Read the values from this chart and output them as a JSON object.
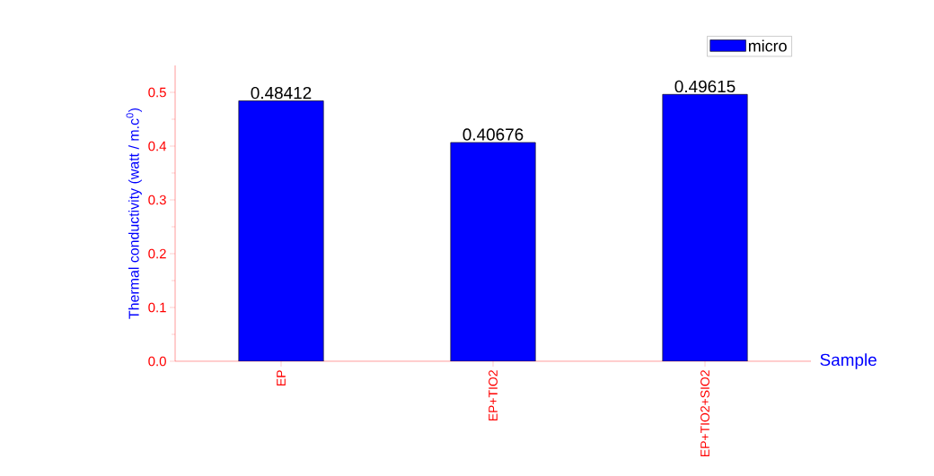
{
  "chart_data": {
    "type": "bar",
    "xlabel": "Sample",
    "ylabel": "Thermal conductivity (watt / m.c$^{0}$)",
    "categories": [
      "EP",
      "EP+TIO2",
      "EP+TIO2+SIO2"
    ],
    "series": [
      {
        "name": "micro",
        "color": "#0000ff",
        "values": [
          0.48412,
          0.40676,
          0.49615
        ]
      }
    ],
    "ylim": [
      0,
      0.55
    ],
    "yticks": [
      {
        "value": 0,
        "label": "0.0"
      },
      0.1,
      0.2,
      0.3,
      0.4,
      0.5
    ],
    "data_labels": true,
    "legend": "top right",
    "grid": false
  }
}
